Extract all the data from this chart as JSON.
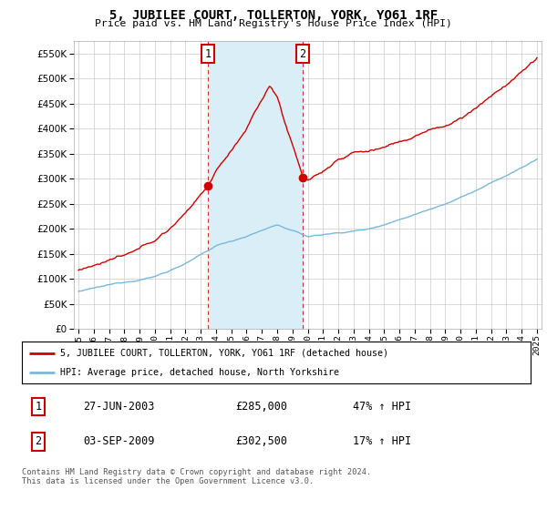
{
  "title": "5, JUBILEE COURT, TOLLERTON, YORK, YO61 1RF",
  "subtitle": "Price paid vs. HM Land Registry's House Price Index (HPI)",
  "legend_line1": "5, JUBILEE COURT, TOLLERTON, YORK, YO61 1RF (detached house)",
  "legend_line2": "HPI: Average price, detached house, North Yorkshire",
  "sale1_date": "27-JUN-2003",
  "sale1_price": 285000,
  "sale1_pct": "47% ↑ HPI",
  "sale1_year": 2003.49,
  "sale2_date": "03-SEP-2009",
  "sale2_price": 302500,
  "sale2_pct": "17% ↑ HPI",
  "sale2_year": 2009.67,
  "ylim_min": 0,
  "ylim_max": 575000,
  "xlim_min": 1994.7,
  "xlim_max": 2025.3,
  "hpi_color": "#7ab8d9",
  "hpi_fill_color": "#daeef7",
  "property_color": "#cc0000",
  "vline_color": "#cc0000",
  "footer": "Contains HM Land Registry data © Crown copyright and database right 2024.\nThis data is licensed under the Open Government Licence v3.0.",
  "background_color": "#ffffff",
  "grid_color": "#cccccc"
}
